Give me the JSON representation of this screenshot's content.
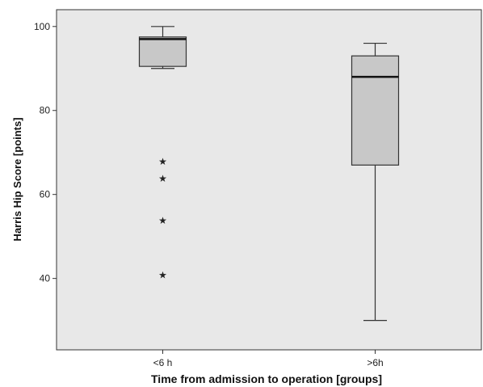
{
  "chart_data": {
    "type": "boxplot",
    "xlabel": "Time from admission to operation [groups]",
    "ylabel": "Harris Hip Score [points]",
    "ylim": [
      23,
      104
    ],
    "yticks": [
      40,
      60,
      80,
      100
    ],
    "grid": false,
    "categories": [
      "<6 h",
      ">6h"
    ],
    "boxes": [
      {
        "category": "<6 h",
        "whisker_low": 90,
        "q1": 90.5,
        "median": 97,
        "q3": 97.5,
        "whisker_high": 100,
        "outliers": [
          68,
          64,
          54,
          41
        ]
      },
      {
        "category": ">6h",
        "whisker_low": 30,
        "q1": 67,
        "median": 88,
        "q3": 93,
        "whisker_high": 96,
        "outliers": []
      }
    ],
    "colors": {
      "plot_background": "#e8e8e8",
      "box_fill": "#c8c8c8",
      "stroke": "#333333"
    }
  }
}
